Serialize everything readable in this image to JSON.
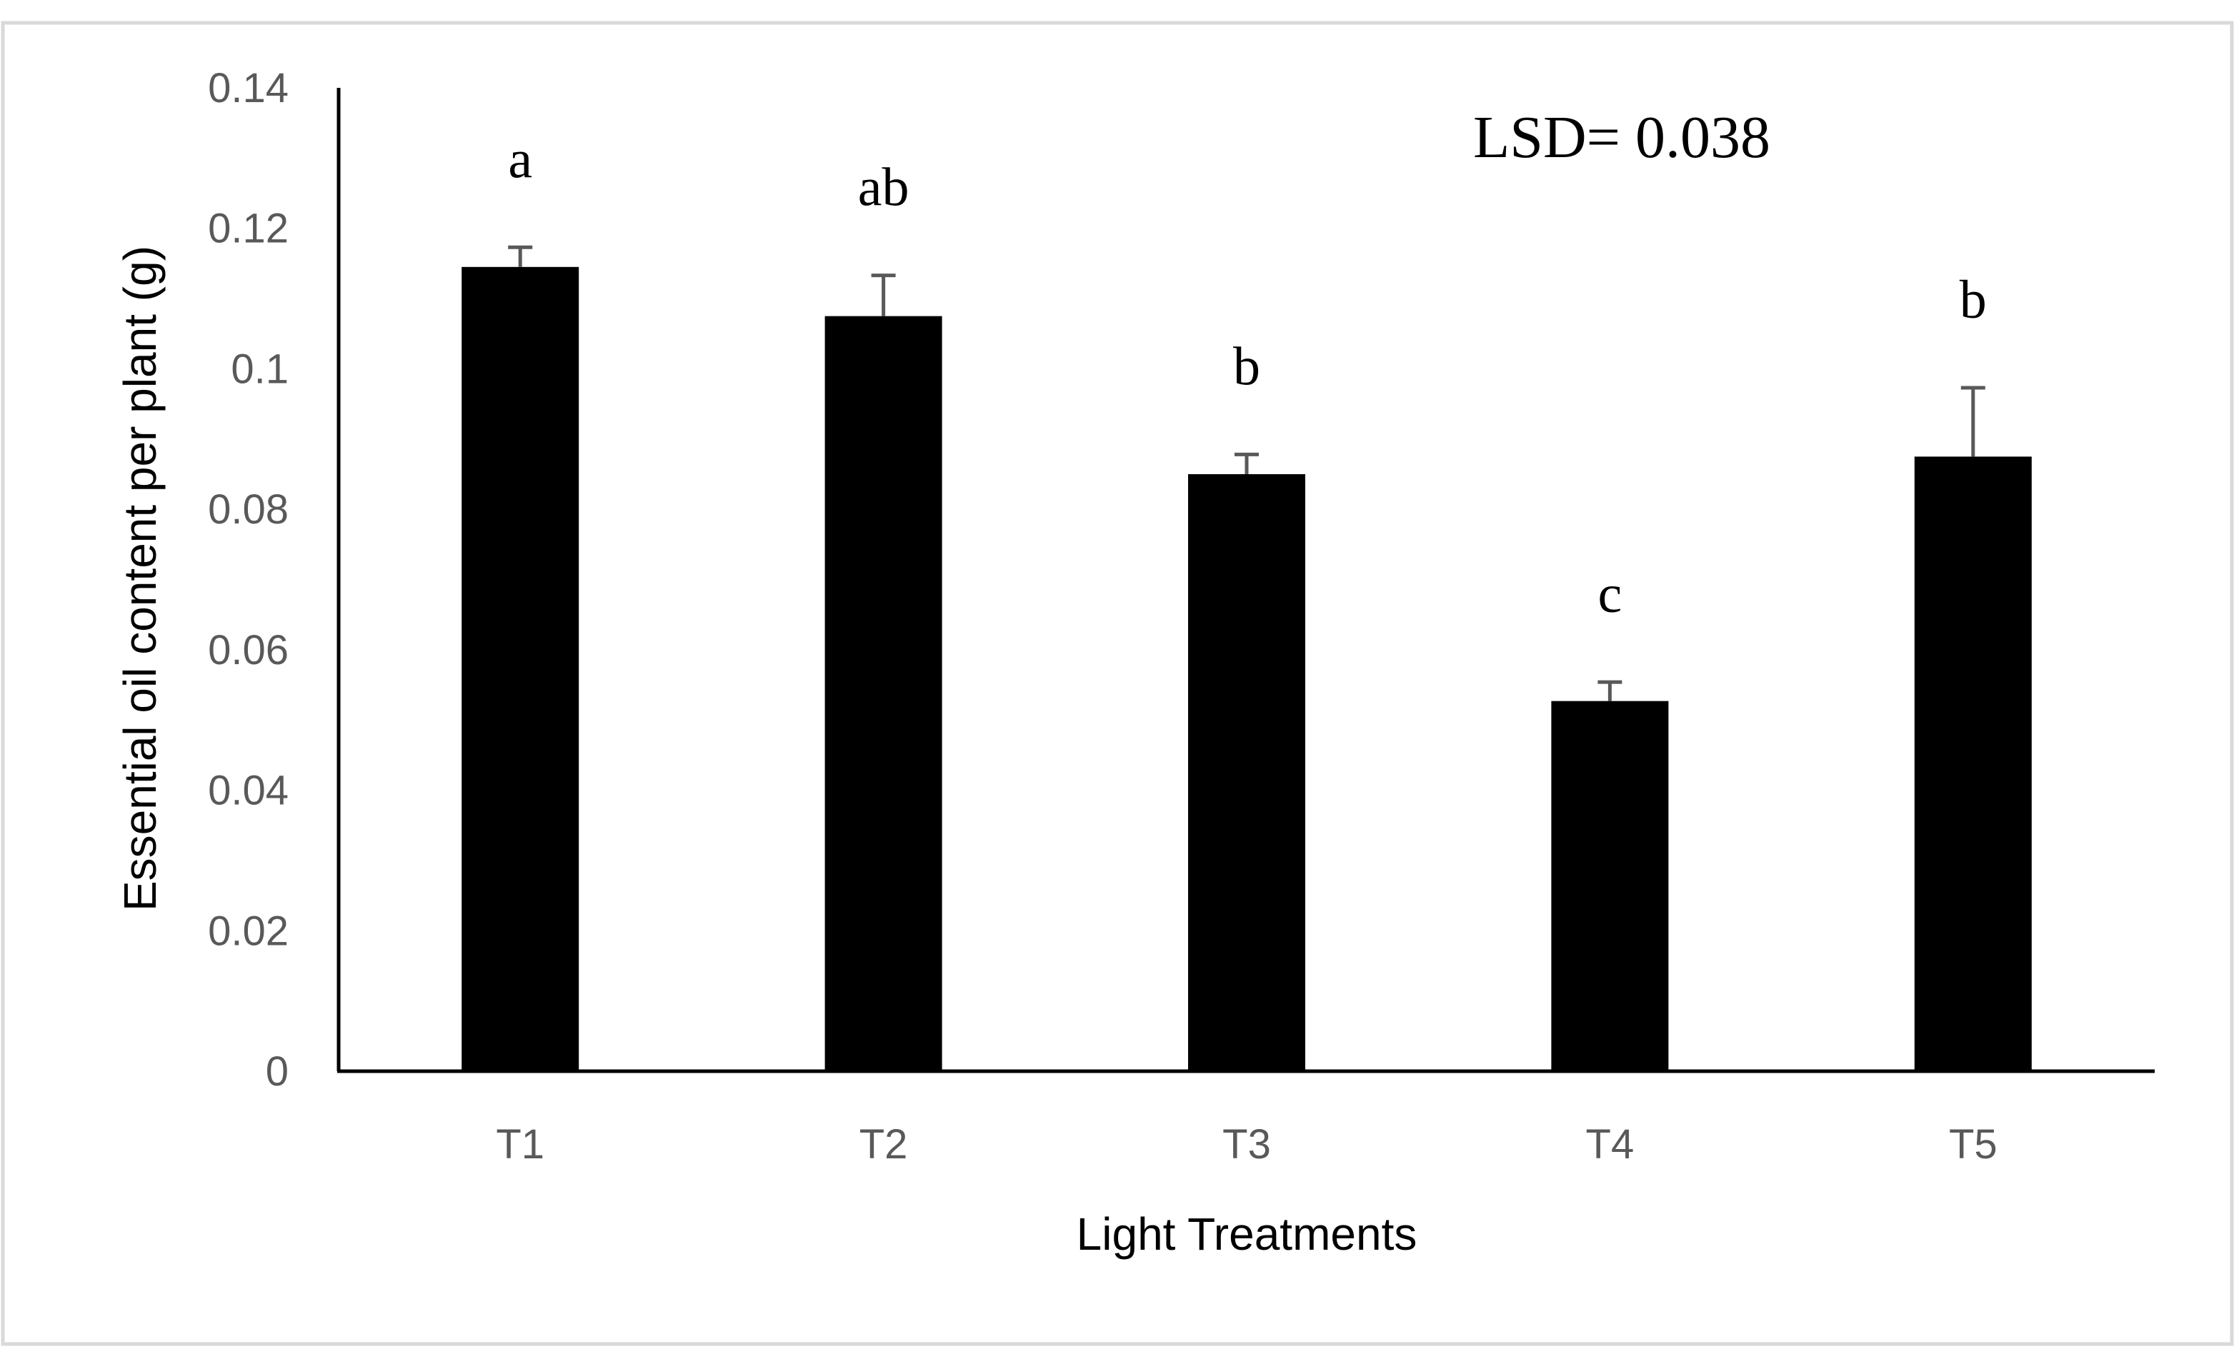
{
  "chart_data": {
    "type": "bar",
    "title": "",
    "xlabel": "Light Treatments",
    "ylabel": "Essential oil content per plant (g)",
    "categories": [
      "T1",
      "T2",
      "T3",
      "T4",
      "T5"
    ],
    "values": [
      0.1145,
      0.1075,
      0.085,
      0.0527,
      0.0875
    ],
    "error_upper": [
      0.0028,
      0.0058,
      0.0028,
      0.0027,
      0.0098
    ],
    "significance_letters": [
      "a",
      "ab",
      "b",
      "c",
      "b"
    ],
    "ylim": [
      0,
      0.14
    ],
    "yticks": [
      0,
      0.02,
      0.04,
      0.06,
      0.08,
      0.1,
      0.12,
      0.14
    ],
    "ytick_labels": [
      "0",
      "0.02",
      "0.04",
      "0.06",
      "0.08",
      "0.1",
      "0.12",
      "0.14"
    ],
    "annotation": "LSD= 0.038",
    "grid": false,
    "legend": "none",
    "colors": {
      "bar": "#000000",
      "axis": "#000000",
      "error_bar": "#595959",
      "tick_label": "#595959",
      "frame": "#d9d9d9"
    }
  }
}
